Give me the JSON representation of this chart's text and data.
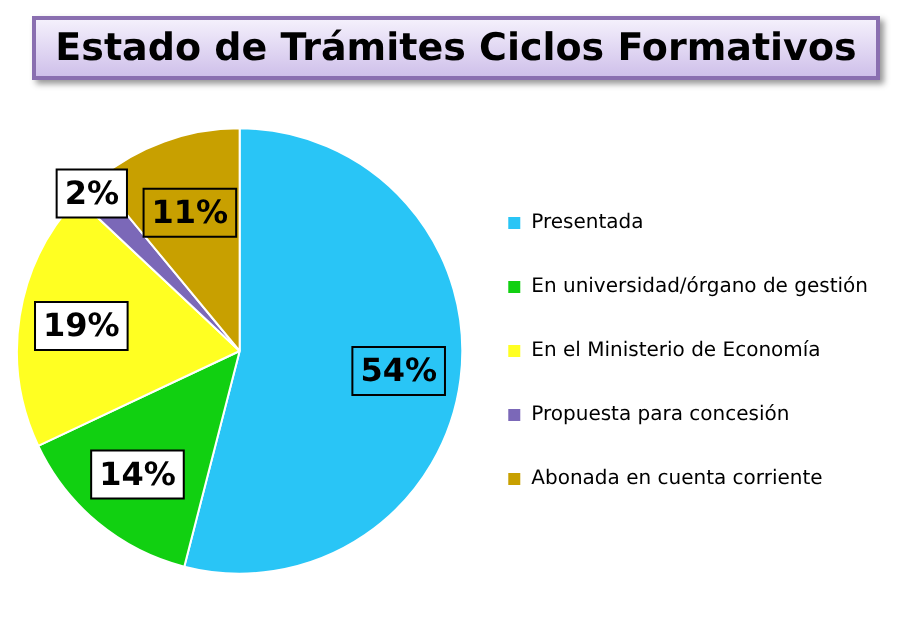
{
  "chart_data": {
    "type": "pie",
    "title": "Estado de Trámites Ciclos Formativos",
    "categories": [
      "Presentada",
      "En universidad/órgano de gestión",
      "En el Ministerio de Economía",
      "Propuesta para concesión",
      "Abonada en cuenta corriente"
    ],
    "values": [
      54,
      14,
      19,
      2,
      11
    ],
    "value_labels": [
      "54%",
      "14%",
      "19%",
      "2%",
      "11%"
    ],
    "colors": [
      "#29c5f6",
      "#11d011",
      "#ffff22",
      "#7b68b8",
      "#c8a000"
    ],
    "legend": "right"
  }
}
